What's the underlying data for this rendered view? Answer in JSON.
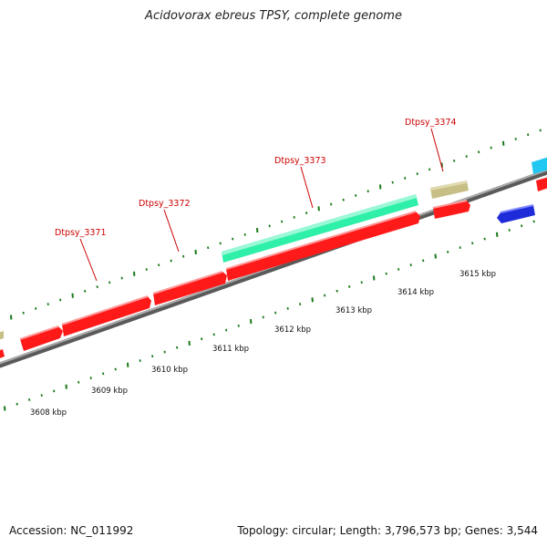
{
  "title": "Acidovorax ebreus TPSY, complete genome",
  "footer": {
    "accession": "Accession: NC_011992",
    "summary": "Topology: circular; Length: 3,796,573 bp; Genes: 3,544"
  },
  "gene_labels": [
    "Dtpsy_3371",
    "Dtpsy_3372",
    "Dtpsy_3373",
    "Dtpsy_3374"
  ],
  "kbp_labels": [
    "3608 kbp",
    "3609 kbp",
    "3610 kbp",
    "3611 kbp",
    "3612 kbp",
    "3613 kbp",
    "3614 kbp",
    "3615 kbp"
  ],
  "colors": {
    "forward_gene": "#ff1a1a",
    "reverse_gene": "#1e2bd9",
    "rna_gene": "#2ef0a8",
    "misc_feature": "#c7bf86",
    "cyan_feature": "#22c7f2",
    "backbone": "#8a8a8a",
    "tick": "#1a7a1a",
    "label": "#cc0000"
  }
}
